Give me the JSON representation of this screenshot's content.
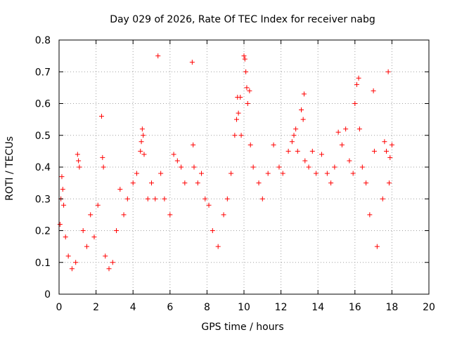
{
  "chart_data": {
    "type": "scatter",
    "title": "Day 029 of 2026, Rate Of TEC Index for receiver nabg",
    "xlabel": "GPS time / hours",
    "ylabel": "ROTI / TECUs",
    "xlim": [
      0,
      20
    ],
    "ylim": [
      0,
      0.8
    ],
    "xticks": [
      "0",
      "2",
      "4",
      "6",
      "8",
      "10",
      "12",
      "14",
      "16",
      "18",
      "20"
    ],
    "yticks": [
      "0",
      "0.1",
      "0.2",
      "0.3",
      "0.4",
      "0.5",
      "0.6",
      "0.7",
      "0.8"
    ],
    "grid": true,
    "marker": "+",
    "color": "#ff0000",
    "series": [
      {
        "name": "",
        "points": [
          [
            0.05,
            0.22
          ],
          [
            0.1,
            0.3
          ],
          [
            0.15,
            0.37
          ],
          [
            0.2,
            0.33
          ],
          [
            0.25,
            0.28
          ],
          [
            0.35,
            0.18
          ],
          [
            0.5,
            0.12
          ],
          [
            0.7,
            0.08
          ],
          [
            0.9,
            0.1
          ],
          [
            1.0,
            0.44
          ],
          [
            1.05,
            0.42
          ],
          [
            1.1,
            0.4
          ],
          [
            1.3,
            0.2
          ],
          [
            1.5,
            0.15
          ],
          [
            1.7,
            0.25
          ],
          [
            1.9,
            0.18
          ],
          [
            2.1,
            0.28
          ],
          [
            2.3,
            0.56
          ],
          [
            2.35,
            0.43
          ],
          [
            2.4,
            0.4
          ],
          [
            2.5,
            0.12
          ],
          [
            2.7,
            0.08
          ],
          [
            2.9,
            0.1
          ],
          [
            3.1,
            0.2
          ],
          [
            3.3,
            0.33
          ],
          [
            3.5,
            0.25
          ],
          [
            3.7,
            0.3
          ],
          [
            4.0,
            0.35
          ],
          [
            4.2,
            0.38
          ],
          [
            4.4,
            0.45
          ],
          [
            4.45,
            0.48
          ],
          [
            4.5,
            0.52
          ],
          [
            4.55,
            0.5
          ],
          [
            4.6,
            0.44
          ],
          [
            4.8,
            0.3
          ],
          [
            5.0,
            0.35
          ],
          [
            5.2,
            0.3
          ],
          [
            5.35,
            0.75
          ],
          [
            5.5,
            0.38
          ],
          [
            5.7,
            0.3
          ],
          [
            6.0,
            0.25
          ],
          [
            6.2,
            0.44
          ],
          [
            6.4,
            0.42
          ],
          [
            6.6,
            0.4
          ],
          [
            6.8,
            0.35
          ],
          [
            7.2,
            0.73
          ],
          [
            7.25,
            0.47
          ],
          [
            7.3,
            0.4
          ],
          [
            7.5,
            0.35
          ],
          [
            7.7,
            0.38
          ],
          [
            7.9,
            0.3
          ],
          [
            8.1,
            0.28
          ],
          [
            8.3,
            0.2
          ],
          [
            8.6,
            0.15
          ],
          [
            8.9,
            0.25
          ],
          [
            9.1,
            0.3
          ],
          [
            9.3,
            0.38
          ],
          [
            9.5,
            0.5
          ],
          [
            9.6,
            0.55
          ],
          [
            9.65,
            0.62
          ],
          [
            9.7,
            0.57
          ],
          [
            9.8,
            0.62
          ],
          [
            9.85,
            0.5
          ],
          [
            10.0,
            0.75
          ],
          [
            10.05,
            0.74
          ],
          [
            10.1,
            0.7
          ],
          [
            10.15,
            0.65
          ],
          [
            10.2,
            0.6
          ],
          [
            10.3,
            0.64
          ],
          [
            10.35,
            0.47
          ],
          [
            10.5,
            0.4
          ],
          [
            10.8,
            0.35
          ],
          [
            11.0,
            0.3
          ],
          [
            11.3,
            0.38
          ],
          [
            11.6,
            0.47
          ],
          [
            11.9,
            0.4
          ],
          [
            12.1,
            0.38
          ],
          [
            12.4,
            0.45
          ],
          [
            12.6,
            0.48
          ],
          [
            12.7,
            0.5
          ],
          [
            12.8,
            0.52
          ],
          [
            12.9,
            0.45
          ],
          [
            13.1,
            0.58
          ],
          [
            13.2,
            0.55
          ],
          [
            13.25,
            0.63
          ],
          [
            13.3,
            0.42
          ],
          [
            13.5,
            0.4
          ],
          [
            13.7,
            0.45
          ],
          [
            13.9,
            0.38
          ],
          [
            14.2,
            0.44
          ],
          [
            14.5,
            0.38
          ],
          [
            14.7,
            0.35
          ],
          [
            14.9,
            0.4
          ],
          [
            15.1,
            0.51
          ],
          [
            15.3,
            0.47
          ],
          [
            15.5,
            0.52
          ],
          [
            15.7,
            0.42
          ],
          [
            15.9,
            0.38
          ],
          [
            16.0,
            0.6
          ],
          [
            16.1,
            0.66
          ],
          [
            16.2,
            0.68
          ],
          [
            16.25,
            0.52
          ],
          [
            16.4,
            0.4
          ],
          [
            16.6,
            0.35
          ],
          [
            16.8,
            0.25
          ],
          [
            17.0,
            0.64
          ],
          [
            17.05,
            0.45
          ],
          [
            17.2,
            0.15
          ],
          [
            17.5,
            0.3
          ],
          [
            17.6,
            0.48
          ],
          [
            17.7,
            0.45
          ],
          [
            17.8,
            0.7
          ],
          [
            17.85,
            0.35
          ],
          [
            17.9,
            0.43
          ],
          [
            18.0,
            0.47
          ]
        ]
      }
    ]
  }
}
